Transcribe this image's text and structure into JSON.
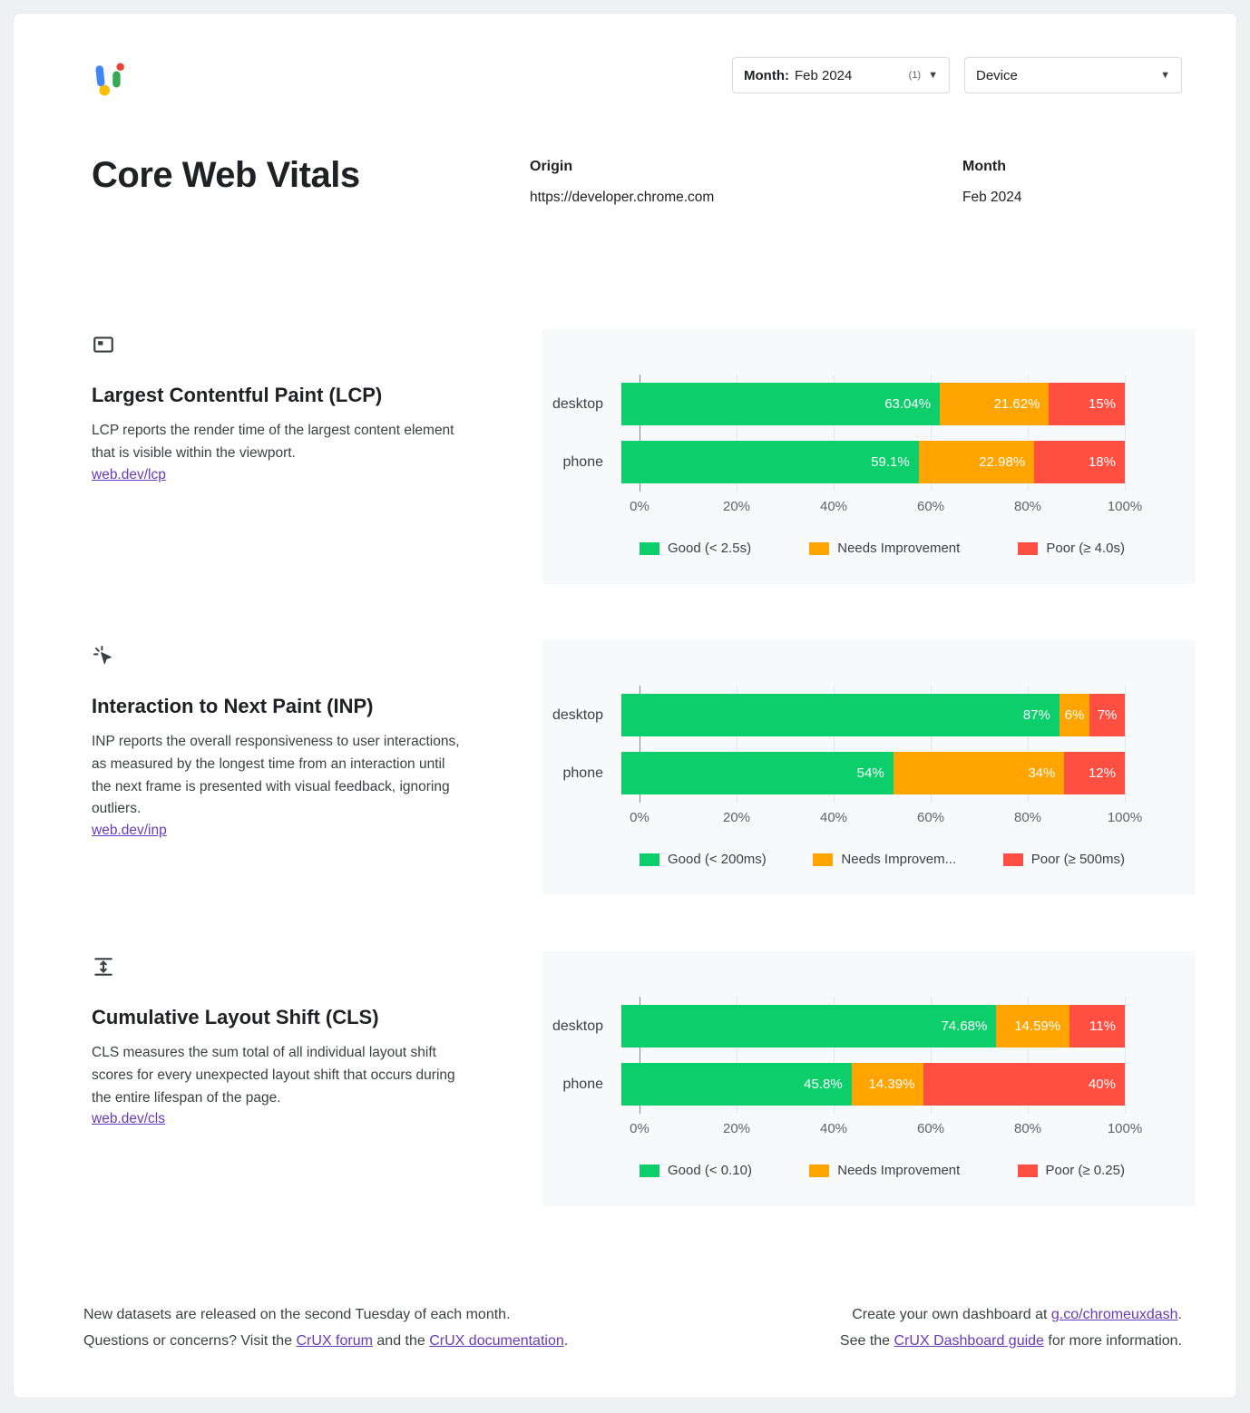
{
  "colors": {
    "good": "#0cce6b",
    "needs_improvement": "#ffa400",
    "poor": "#ff4e42",
    "link": "#673ab7",
    "panel_bg": "#f8f9fa"
  },
  "filters": {
    "month": {
      "label": "Month:",
      "value": "Feb 2024",
      "count": "(1)"
    },
    "device": {
      "label": "Device"
    }
  },
  "header": {
    "title": "Core Web Vitals",
    "origin_label": "Origin",
    "origin_value": "https://developer.chrome.com",
    "month_label": "Month",
    "month_value": "Feb 2024"
  },
  "sections": [
    {
      "icon": "viewport-frame-icon",
      "title": "Largest Contentful Paint (LCP)",
      "description": "LCP reports the render time of the largest content element that is visible within the viewport.",
      "link": "web.dev/lcp"
    },
    {
      "icon": "cursor-click-icon",
      "title": "Interaction to Next Paint (INP)",
      "description": "INP reports the overall responsiveness to user interactions, as measured by the longest time from an interaction until the next frame is presented with visual feedback, ignoring outliers.",
      "link": "web.dev/inp"
    },
    {
      "icon": "layout-shift-icon",
      "title": "Cumulative Layout Shift (CLS)",
      "description": "CLS measures the sum total of all individual layout shift scores for every unexpected layout shift that occurs during the entire lifespan of the page.",
      "link": "web.dev/cls"
    }
  ],
  "chart_data": [
    {
      "type": "bar",
      "stacked": true,
      "orientation": "horizontal",
      "title": "Largest Contentful Paint (LCP)",
      "categories": [
        "desktop",
        "phone"
      ],
      "series": [
        {
          "name": "Good (< 2.5s)",
          "color_key": "good",
          "values": [
            63.04,
            59.1
          ],
          "labels": [
            "63.04%",
            "59.1%"
          ]
        },
        {
          "name": "Needs Improvement",
          "color_key": "needs_improvement",
          "values": [
            21.62,
            22.98
          ],
          "labels": [
            "21.62%",
            "22.98%"
          ]
        },
        {
          "name": "Poor (≥ 4.0s)",
          "color_key": "poor",
          "values": [
            15,
            18
          ],
          "labels": [
            "15%",
            "18%"
          ]
        }
      ],
      "legend": [
        "Good (< 2.5s)",
        "Needs Improvement",
        "Poor (≥ 4.0s)"
      ],
      "x_ticks": [
        "0%",
        "20%",
        "40%",
        "60%",
        "80%",
        "100%"
      ],
      "xlim": [
        0,
        100
      ],
      "grid": true,
      "legend_position": "bottom"
    },
    {
      "type": "bar",
      "stacked": true,
      "orientation": "horizontal",
      "title": "Interaction to Next Paint (INP)",
      "categories": [
        "desktop",
        "phone"
      ],
      "series": [
        {
          "name": "Good (< 200ms)",
          "color_key": "good",
          "values": [
            87,
            54
          ],
          "labels": [
            "87%",
            "54%"
          ]
        },
        {
          "name": "Needs Improvement",
          "color_key": "needs_improvement",
          "values": [
            6,
            34
          ],
          "labels": [
            "6%",
            "34%"
          ]
        },
        {
          "name": "Poor (≥ 500ms)",
          "color_key": "poor",
          "values": [
            7,
            12
          ],
          "labels": [
            "7%",
            "12%"
          ]
        }
      ],
      "legend": [
        "Good (< 200ms)",
        "Needs Improvem...",
        "Poor (≥ 500ms)"
      ],
      "x_ticks": [
        "0%",
        "20%",
        "40%",
        "60%",
        "80%",
        "100%"
      ],
      "xlim": [
        0,
        100
      ],
      "grid": true,
      "legend_position": "bottom"
    },
    {
      "type": "bar",
      "stacked": true,
      "orientation": "horizontal",
      "title": "Cumulative Layout Shift (CLS)",
      "categories": [
        "desktop",
        "phone"
      ],
      "series": [
        {
          "name": "Good (< 0.10)",
          "color_key": "good",
          "values": [
            74.68,
            45.8
          ],
          "labels": [
            "74.68%",
            "45.8%"
          ]
        },
        {
          "name": "Needs Improvement",
          "color_key": "needs_improvement",
          "values": [
            14.59,
            14.39
          ],
          "labels": [
            "14.59%",
            "14.39%"
          ]
        },
        {
          "name": "Poor (≥ 0.25)",
          "color_key": "poor",
          "values": [
            11,
            40
          ],
          "labels": [
            "11%",
            "40%"
          ]
        }
      ],
      "legend": [
        "Good (< 0.10)",
        "Needs Improvement",
        "Poor (≥ 0.25)"
      ],
      "x_ticks": [
        "0%",
        "20%",
        "40%",
        "60%",
        "80%",
        "100%"
      ],
      "xlim": [
        0,
        100
      ],
      "grid": true,
      "legend_position": "bottom"
    }
  ],
  "footer": {
    "left_line1": "New datasets are released on the second Tuesday of each month.",
    "left_line2_prefix": "Questions or concerns? Visit the ",
    "left_link1": "CrUX forum",
    "left_line2_mid": " and the ",
    "left_link2": "CrUX documentation",
    "left_line2_suffix": ".",
    "right_line1_prefix": "Create your own dashboard at ",
    "right_link1": "g.co/chromeuxdash",
    "right_line1_suffix": ".",
    "right_line2_prefix": "See the ",
    "right_link2": "CrUX Dashboard guide",
    "right_line2_suffix": " for more information."
  }
}
